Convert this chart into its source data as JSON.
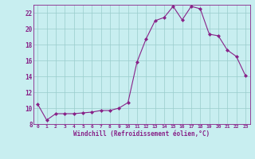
{
  "x": [
    0,
    1,
    2,
    3,
    4,
    5,
    6,
    7,
    8,
    9,
    10,
    11,
    12,
    13,
    14,
    15,
    16,
    17,
    18,
    19,
    20,
    21,
    22,
    23
  ],
  "y": [
    10.5,
    8.5,
    9.3,
    9.3,
    9.3,
    9.4,
    9.5,
    9.7,
    9.7,
    10.0,
    10.7,
    15.8,
    18.7,
    21.0,
    21.4,
    22.8,
    21.1,
    22.8,
    22.5,
    19.3,
    19.1,
    17.3,
    16.5,
    14.1
  ],
  "line_color": "#882288",
  "marker_color": "#882288",
  "bg_color": "#c8eef0",
  "grid_color": "#99cccc",
  "xlabel": "Windchill (Refroidissement éolien,°C)",
  "ylim": [
    8,
    23
  ],
  "xlim": [
    -0.5,
    23.5
  ],
  "yticks": [
    8,
    10,
    12,
    14,
    16,
    18,
    20,
    22
  ],
  "xticks": [
    0,
    1,
    2,
    3,
    4,
    5,
    6,
    7,
    8,
    9,
    10,
    11,
    12,
    13,
    14,
    15,
    16,
    17,
    18,
    19,
    20,
    21,
    22,
    23
  ],
  "xlabel_color": "#882288",
  "tick_color": "#882288",
  "axis_color": "#882288",
  "title_color": "#882288"
}
